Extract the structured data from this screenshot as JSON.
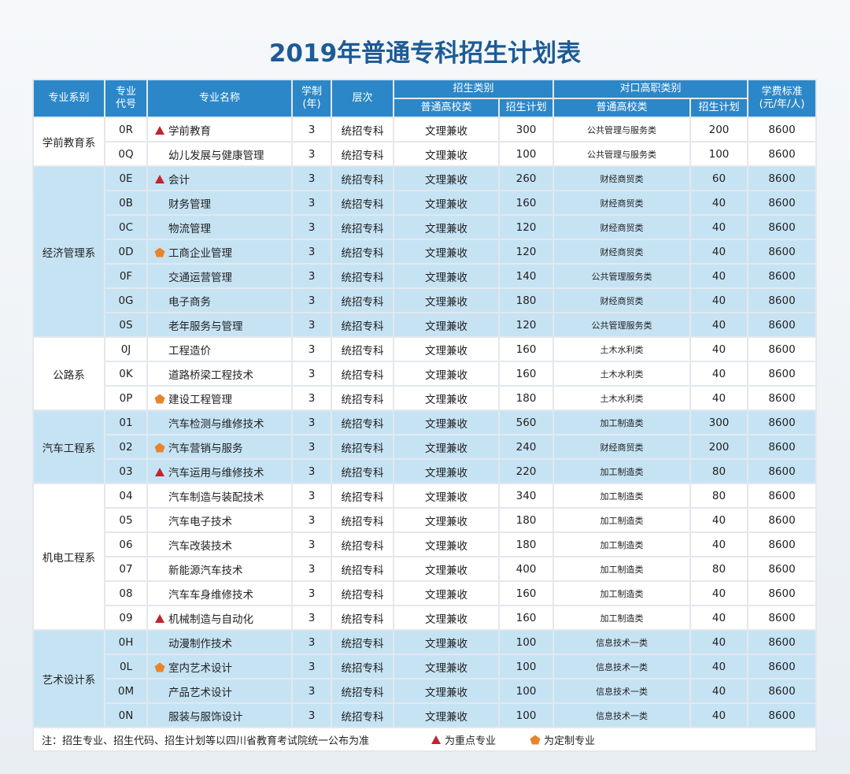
{
  "title": "2019年普通专科招生计划表",
  "header": {
    "dept": "专业系别",
    "code": "专业\n代号",
    "name": "专业名称",
    "years": "学制\n(年)",
    "level": "层次",
    "enroll": "招生类别",
    "enroll_type": "普通高校类",
    "enroll_plan": "招生计划",
    "voc": "对口高职类别",
    "voc_type": "普通高校类",
    "voc_plan": "招生计划",
    "fee": "学费标准\n(元/年/人)"
  },
  "groups": [
    {
      "dept": "学前教育系",
      "rows": [
        {
          "code": "0R",
          "name": "学前教育",
          "marker": "triangle",
          "years": 3,
          "level": "统招专科",
          "type": "文理兼收",
          "plan": 300,
          "voc_type": "公共管理与服务类",
          "voc_plan": 200,
          "fee": 8600
        },
        {
          "code": "0Q",
          "name": "幼儿发展与健康管理",
          "years": 3,
          "level": "统招专科",
          "type": "文理兼收",
          "plan": 100,
          "voc_type": "公共管理与服务类",
          "voc_plan": 100,
          "fee": 8600
        }
      ]
    },
    {
      "dept": "经济管理系",
      "rows": [
        {
          "code": "0E",
          "name": "会计",
          "marker": "triangle",
          "years": 3,
          "level": "统招专科",
          "type": "文理兼收",
          "plan": 260,
          "voc_type": "财经商贸类",
          "voc_plan": 60,
          "fee": 8600
        },
        {
          "code": "0B",
          "name": "财务管理",
          "years": 3,
          "level": "统招专科",
          "type": "文理兼收",
          "plan": 160,
          "voc_type": "财经商贸类",
          "voc_plan": 40,
          "fee": 8600
        },
        {
          "code": "0C",
          "name": "物流管理",
          "years": 3,
          "level": "统招专科",
          "type": "文理兼收",
          "plan": 120,
          "voc_type": "财经商贸类",
          "voc_plan": 40,
          "fee": 8600
        },
        {
          "code": "0D",
          "name": "工商企业管理",
          "marker": "pentagon",
          "years": 3,
          "level": "统招专科",
          "type": "文理兼收",
          "plan": 120,
          "voc_type": "财经商贸类",
          "voc_plan": 40,
          "fee": 8600
        },
        {
          "code": "0F",
          "name": "交通运营管理",
          "years": 3,
          "level": "统招专科",
          "type": "文理兼收",
          "plan": 140,
          "voc_type": "公共管理服务类",
          "voc_plan": 40,
          "fee": 8600
        },
        {
          "code": "0G",
          "name": "电子商务",
          "years": 3,
          "level": "统招专科",
          "type": "文理兼收",
          "plan": 180,
          "voc_type": "财经商贸类",
          "voc_plan": 40,
          "fee": 8600
        },
        {
          "code": "0S",
          "name": "老年服务与管理",
          "years": 3,
          "level": "统招专科",
          "type": "文理兼收",
          "plan": 120,
          "voc_type": "公共管理服务类",
          "voc_plan": 40,
          "fee": 8600
        }
      ]
    },
    {
      "dept": "公路系",
      "rows": [
        {
          "code": "0J",
          "name": "工程造价",
          "years": 3,
          "level": "统招专科",
          "type": "文理兼收",
          "plan": 160,
          "voc_type": "土木水利类",
          "voc_plan": 40,
          "fee": 8600
        },
        {
          "code": "0K",
          "name": "道路桥梁工程技术",
          "years": 3,
          "level": "统招专科",
          "type": "文理兼收",
          "plan": 160,
          "voc_type": "土木水利类",
          "voc_plan": 40,
          "fee": 8600
        },
        {
          "code": "0P",
          "name": "建设工程管理",
          "marker": "pentagon",
          "years": 3,
          "level": "统招专科",
          "type": "文理兼收",
          "plan": 180,
          "voc_type": "土木水利类",
          "voc_plan": 40,
          "fee": 8600
        }
      ]
    },
    {
      "dept": "汽车工程系",
      "rows": [
        {
          "code": "01",
          "name": "汽车检测与维修技术",
          "years": 3,
          "level": "统招专科",
          "type": "文理兼收",
          "plan": 560,
          "voc_type": "加工制造类",
          "voc_plan": 300,
          "fee": 8600
        },
        {
          "code": "02",
          "name": "汽车营销与服务",
          "marker": "pentagon",
          "years": 3,
          "level": "统招专科",
          "type": "文理兼收",
          "plan": 240,
          "voc_type": "财经商贸类",
          "voc_plan": 200,
          "fee": 8600
        },
        {
          "code": "03",
          "name": "汽车运用与维修技术",
          "marker": "triangle",
          "years": 3,
          "level": "统招专科",
          "type": "文理兼收",
          "plan": 220,
          "voc_type": "加工制造类",
          "voc_plan": 80,
          "fee": 8600
        }
      ]
    },
    {
      "dept": "机电工程系",
      "rows": [
        {
          "code": "04",
          "name": "汽车制造与装配技术",
          "years": 3,
          "level": "统招专科",
          "type": "文理兼收",
          "plan": 340,
          "voc_type": "加工制造类",
          "voc_plan": 80,
          "fee": 8600
        },
        {
          "code": "05",
          "name": "汽车电子技术",
          "years": 3,
          "level": "统招专科",
          "type": "文理兼收",
          "plan": 180,
          "voc_type": "加工制造类",
          "voc_plan": 40,
          "fee": 8600
        },
        {
          "code": "06",
          "name": "汽车改装技术",
          "years": 3,
          "level": "统招专科",
          "type": "文理兼收",
          "plan": 180,
          "voc_type": "加工制造类",
          "voc_plan": 40,
          "fee": 8600
        },
        {
          "code": "07",
          "name": "新能源汽车技术",
          "years": 3,
          "level": "统招专科",
          "type": "文理兼收",
          "plan": 400,
          "voc_type": "加工制造类",
          "voc_plan": 80,
          "fee": 8600
        },
        {
          "code": "08",
          "name": "汽车车身维修技术",
          "years": 3,
          "level": "统招专科",
          "type": "文理兼收",
          "plan": 160,
          "voc_type": "加工制造类",
          "voc_plan": 40,
          "fee": 8600
        },
        {
          "code": "09",
          "name": "机械制造与自动化",
          "marker": "triangle",
          "years": 3,
          "level": "统招专科",
          "type": "文理兼收",
          "plan": 160,
          "voc_type": "加工制造类",
          "voc_plan": 40,
          "fee": 8600
        }
      ]
    },
    {
      "dept": "艺术设计系",
      "rows": [
        {
          "code": "0H",
          "name": "动漫制作技术",
          "years": 3,
          "level": "统招专科",
          "type": "文理兼收",
          "plan": 100,
          "voc_type": "信息技术一类",
          "voc_plan": 40,
          "fee": 8600
        },
        {
          "code": "0L",
          "name": "室内艺术设计",
          "marker": "pentagon",
          "years": 3,
          "level": "统招专科",
          "type": "文理兼收",
          "plan": 100,
          "voc_type": "信息技术一类",
          "voc_plan": 40,
          "fee": 8600
        },
        {
          "code": "0M",
          "name": "产品艺术设计",
          "years": 3,
          "level": "统招专科",
          "type": "文理兼收",
          "plan": 100,
          "voc_type": "信息技术一类",
          "voc_plan": 40,
          "fee": 8600
        },
        {
          "code": "0N",
          "name": "服装与服饰设计",
          "years": 3,
          "level": "统招专科",
          "type": "文理兼收",
          "plan": 100,
          "voc_type": "信息技术一类",
          "voc_plan": 40,
          "fee": 8600
        }
      ]
    }
  ],
  "footer": {
    "note": "注：招生专业、招生代码、招生计划等以四川省教育考试院统一公布为准",
    "triangle": "为重点专业",
    "pentagon": "为定制专业"
  }
}
